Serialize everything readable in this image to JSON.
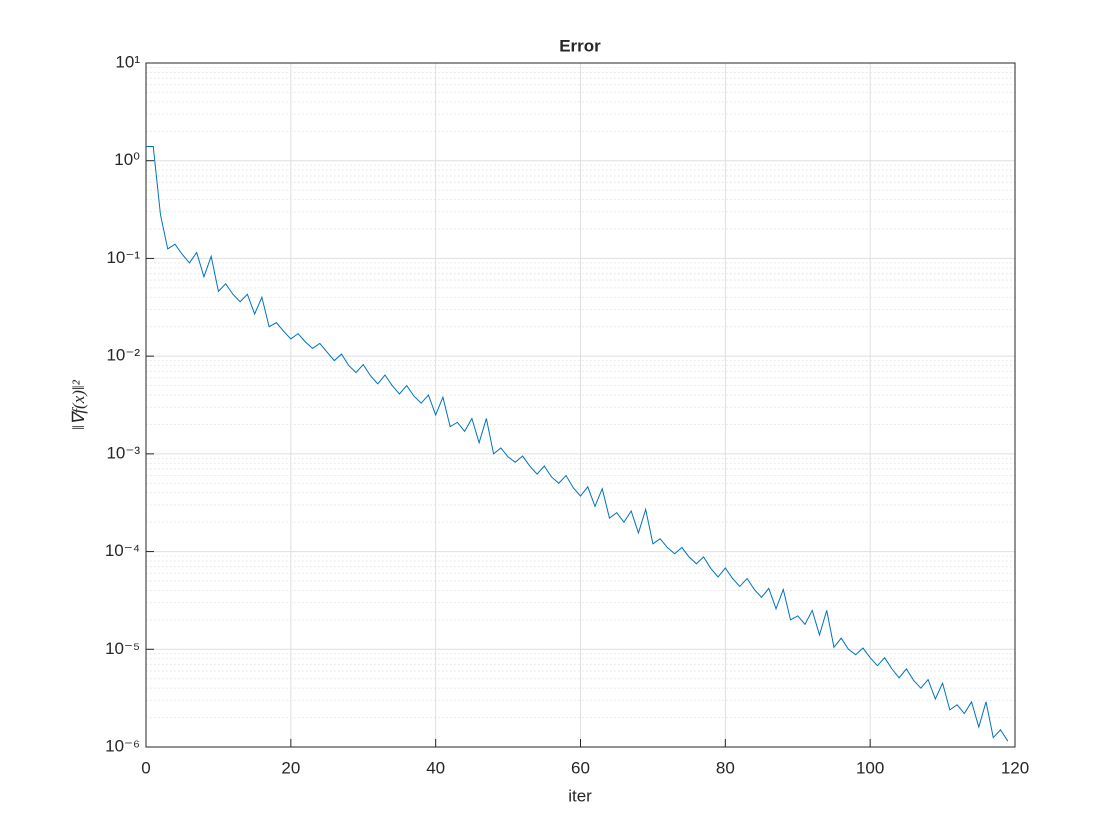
{
  "chart_data": {
    "type": "line",
    "title": "Error",
    "xlabel": "iter",
    "ylabel": "‖∇f(x)‖²",
    "x": [
      0,
      1,
      2,
      3,
      4,
      5,
      6,
      7,
      8,
      9,
      10,
      11,
      12,
      13,
      14,
      15,
      16,
      17,
      18,
      19,
      20,
      21,
      22,
      23,
      24,
      25,
      26,
      27,
      28,
      29,
      30,
      31,
      32,
      33,
      34,
      35,
      36,
      37,
      38,
      39,
      40,
      41,
      42,
      43,
      44,
      45,
      46,
      47,
      48,
      49,
      50,
      51,
      52,
      53,
      54,
      55,
      56,
      57,
      58,
      59,
      60,
      61,
      62,
      63,
      64,
      65,
      66,
      67,
      68,
      69,
      70,
      71,
      72,
      73,
      74,
      75,
      76,
      77,
      78,
      79,
      80,
      81,
      82,
      83,
      84,
      85,
      86,
      87,
      88,
      89,
      90,
      91,
      92,
      93,
      94,
      95,
      96,
      97,
      98,
      99,
      100,
      101,
      102,
      103,
      104,
      105,
      106,
      107,
      108,
      109,
      110,
      111,
      112,
      113,
      114,
      115,
      116,
      117,
      118,
      119
    ],
    "values": [
      1.4,
      1.4,
      0.28,
      0.125,
      0.14,
      0.11,
      0.09,
      0.115,
      0.065,
      0.105,
      0.046,
      0.055,
      0.043,
      0.036,
      0.043,
      0.027,
      0.04,
      0.02,
      0.022,
      0.018,
      0.015,
      0.017,
      0.014,
      0.012,
      0.0135,
      0.011,
      0.009,
      0.0105,
      0.008,
      0.0068,
      0.0082,
      0.0063,
      0.0052,
      0.0064,
      0.005,
      0.0041,
      0.005,
      0.0039,
      0.0033,
      0.004,
      0.0025,
      0.0038,
      0.0019,
      0.0021,
      0.0017,
      0.0023,
      0.0013,
      0.0023,
      0.001,
      0.00115,
      0.00093,
      0.00082,
      0.00095,
      0.00075,
      0.00062,
      0.00075,
      0.00058,
      0.0005,
      0.0006,
      0.00045,
      0.00037,
      0.00046,
      0.00029,
      0.00044,
      0.00022,
      0.00025,
      0.0002,
      0.00026,
      0.000155,
      0.00027,
      0.00012,
      0.000135,
      0.00011,
      9.5e-05,
      0.00011,
      8.8e-05,
      7.5e-05,
      8.8e-05,
      6.7e-05,
      5.5e-05,
      6.8e-05,
      5.3e-05,
      4.4e-05,
      5.3e-05,
      4.1e-05,
      3.4e-05,
      4.2e-05,
      2.6e-05,
      4.1e-05,
      2e-05,
      2.2e-05,
      1.8e-05,
      2.5e-05,
      1.4e-05,
      2.5e-05,
      1.05e-05,
      1.3e-05,
      1e-05,
      8.8e-06,
      1.03e-05,
      8.2e-06,
      6.8e-06,
      8.2e-06,
      6.3e-06,
      5.1e-06,
      6.3e-06,
      4.8e-06,
      4e-06,
      4.9e-06,
      3.1e-06,
      4.5e-06,
      2.4e-06,
      2.7e-06,
      2.2e-06,
      2.9e-06,
      1.6e-06,
      2.9e-06,
      1.25e-06,
      1.5e-06,
      1.15e-06
    ],
    "color": "#0072bd",
    "xlim": [
      0,
      120
    ],
    "xticks": [
      0,
      20,
      40,
      60,
      80,
      100,
      120
    ],
    "ylim": [
      1e-06,
      10
    ],
    "ylog": true,
    "grid": true,
    "minor_grid": true,
    "yticks": [
      {
        "value": 1e-06,
        "label": "10⁻⁶"
      },
      {
        "value": 1e-05,
        "label": "10⁻⁵"
      },
      {
        "value": 0.0001,
        "label": "10⁻⁴"
      },
      {
        "value": 0.001,
        "label": "10⁻³"
      },
      {
        "value": 0.01,
        "label": "10⁻²"
      },
      {
        "value": 0.1,
        "label": "10⁻¹"
      },
      {
        "value": 1,
        "label": "10⁰"
      },
      {
        "value": 10,
        "label": "10¹"
      }
    ]
  }
}
